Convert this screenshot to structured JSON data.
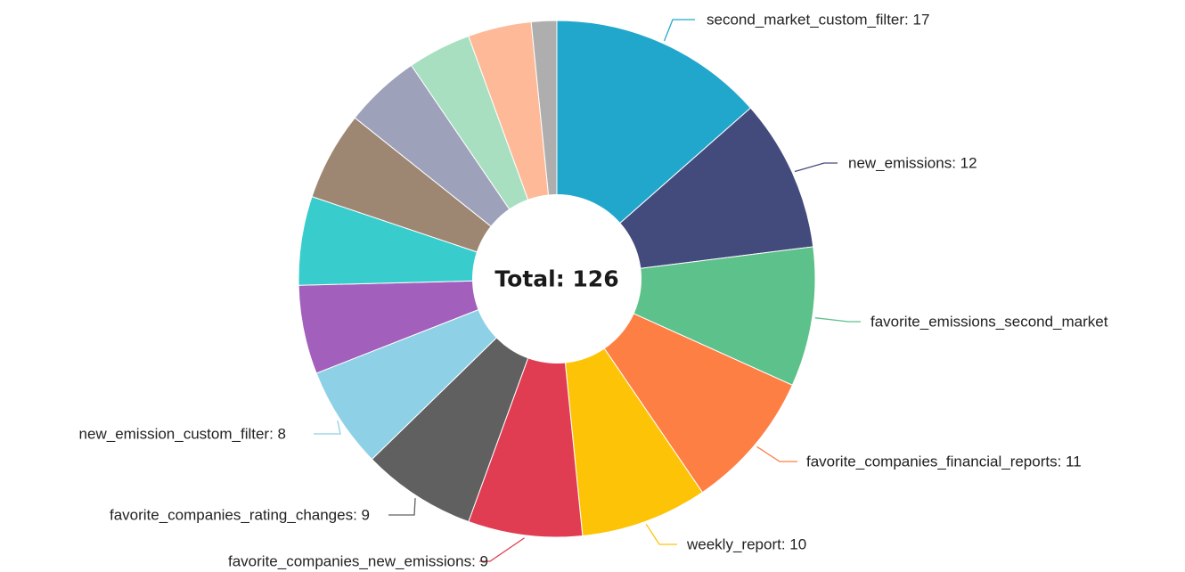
{
  "chart_data": {
    "type": "pie",
    "center_label": "Total: 126",
    "total": 126,
    "slices": [
      {
        "label": "second_market_custom_filter",
        "value": 17,
        "color": "#22a7cc",
        "data_label": "second_market_custom_filter: 17"
      },
      {
        "label": "new_emissions",
        "value": 12,
        "color": "#434b7c",
        "data_label": "new_emissions: 12"
      },
      {
        "label": "favorite_emissions_second_market",
        "value": 11,
        "color": "#5cc18a",
        "data_label": "favorite_emissions_second_market"
      },
      {
        "label": "favorite_companies_financial_reports",
        "value": 11,
        "color": "#fd7f44",
        "data_label": "favorite_companies_financial_reports: 11"
      },
      {
        "label": "weekly_report",
        "value": 10,
        "color": "#fdc407",
        "data_label": "weekly_report: 10"
      },
      {
        "label": "favorite_companies_new_emissions",
        "value": 9,
        "color": "#e03c52",
        "data_label": "favorite_companies_new_emissions: 9"
      },
      {
        "label": "favorite_companies_rating_changes",
        "value": 9,
        "color": "#606060",
        "data_label": "favorite_companies_rating_changes: 9"
      },
      {
        "label": "new_emission_custom_filter",
        "value": 8,
        "color": "#8ed1e6",
        "data_label": "new_emission_custom_filter: 8"
      },
      {
        "label": "",
        "value": 7,
        "color": "#a25fbb",
        "data_label": ""
      },
      {
        "label": "",
        "value": 7,
        "color": "#39cccc",
        "data_label": ""
      },
      {
        "label": "",
        "value": 7,
        "color": "#9e8772",
        "data_label": ""
      },
      {
        "label": "",
        "value": 6,
        "color": "#9ea1ba",
        "data_label": ""
      },
      {
        "label": "",
        "value": 5,
        "color": "#a8dfc0",
        "data_label": ""
      },
      {
        "label": "",
        "value": 5,
        "color": "#feba98",
        "data_label": ""
      },
      {
        "label": "",
        "value": 2,
        "color": "#aeaeae",
        "data_label": ""
      }
    ]
  }
}
